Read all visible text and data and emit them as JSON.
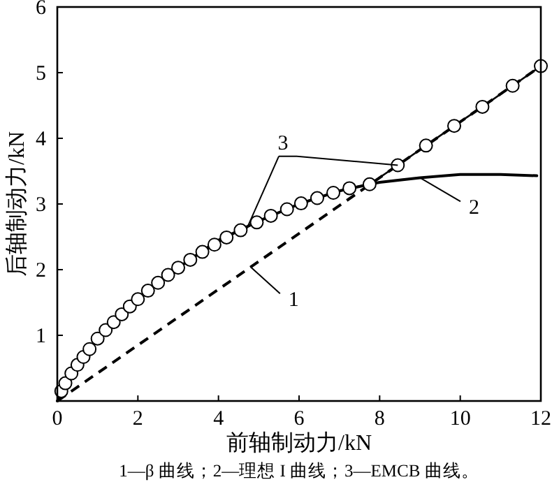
{
  "chart_data": {
    "type": "line",
    "xlabel": "前轴制动力/kN",
    "ylabel": "后轴制动力/kN",
    "xlim": [
      0,
      12
    ],
    "ylim": [
      0,
      6
    ],
    "xticks": [
      0,
      2,
      4,
      6,
      8,
      10,
      12
    ],
    "yticks": [
      {
        "value": 0,
        "label": null
      },
      1,
      2,
      3,
      4,
      5,
      6
    ],
    "grid": false,
    "series": [
      {
        "color": "#000000",
        "line_style": "dashed",
        "x": [
          0,
          12
        ],
        "values": [
          0,
          5.1
        ]
      },
      {
        "color": "#000000",
        "line_style": "solid",
        "x": [
          0,
          0.5,
          1,
          2,
          3,
          4,
          5,
          6,
          7,
          7.75,
          8,
          9,
          10,
          11,
          11.9
        ],
        "values": [
          0,
          0.55,
          0.95,
          1.55,
          2.03,
          2.45,
          2.74,
          3.0,
          3.2,
          3.3,
          3.33,
          3.4,
          3.45,
          3.45,
          3.43
        ]
      },
      {
        "color": "#000000",
        "line_style": "solid",
        "marker": "circle",
        "x": [
          0.1,
          0.2,
          0.35,
          0.5,
          0.65,
          0.8,
          1.0,
          1.2,
          1.4,
          1.6,
          1.8,
          2.0,
          2.25,
          2.5,
          2.75,
          3.0,
          3.3,
          3.6,
          3.9,
          4.2,
          4.55,
          4.95,
          5.3,
          5.7,
          6.05,
          6.45,
          6.85,
          7.25,
          7.75,
          8.45,
          9.15,
          9.85,
          10.55,
          11.3,
          12.0
        ],
        "values": [
          0.15,
          0.27,
          0.42,
          0.55,
          0.67,
          0.79,
          0.95,
          1.08,
          1.2,
          1.32,
          1.44,
          1.55,
          1.68,
          1.8,
          1.92,
          2.03,
          2.15,
          2.27,
          2.38,
          2.49,
          2.6,
          2.72,
          2.82,
          2.92,
          3.01,
          3.09,
          3.17,
          3.24,
          3.3,
          3.59,
          3.89,
          4.19,
          4.48,
          4.8,
          5.1
        ]
      }
    ],
    "annotations": [
      {
        "text": "1",
        "x": 4.8,
        "y": 2.04
      },
      {
        "text": "2",
        "x": 9.0,
        "y": 3.4
      },
      {
        "text": "3",
        "x": 4.7,
        "y": 2.62
      },
      "1—β 曲线；2—理想 I 曲线；3—EMCB 曲线。"
    ]
  }
}
